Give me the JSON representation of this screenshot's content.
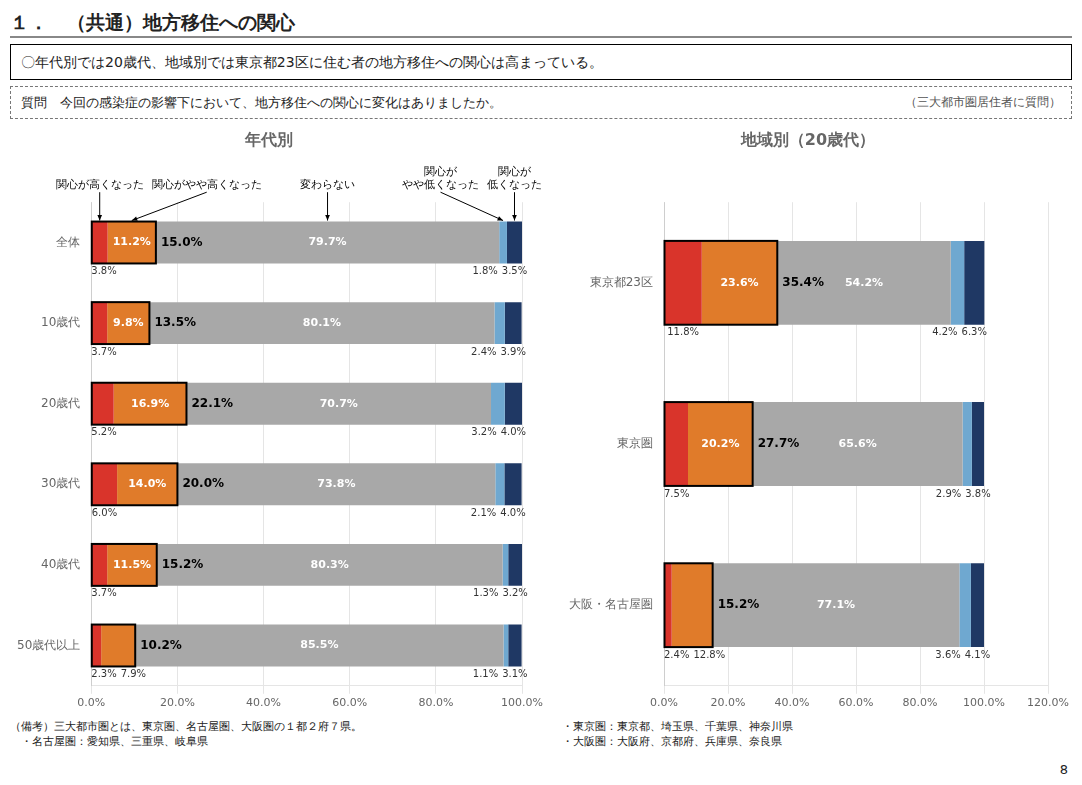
{
  "title": "１．　（共通）地方移住への関心",
  "summary": "〇年代別では20歳代、地域別では東京都23区に住む者の地方移住への関心は高まっている。",
  "question": "質問　今回の感染症の影響下において、地方移住への関心に変化はありましたか。",
  "question_note": "（三大都市圏居住者に質問）",
  "footnotes": [
    "（備考）三大都市圏とは、東京圏、名古屋圏、大阪圏の１都２府７県。",
    "　・名古屋圏：愛知県、三重県、岐阜県",
    "・東京圏：東京都、埼玉県、千葉県、神奈川県",
    "・大阪圏：大阪府、京都府、兵庫県、奈良県"
  ],
  "page_number": "8",
  "chart_data": [
    {
      "type": "bar",
      "orientation": "horizontal",
      "stacked": true,
      "title": "年代別",
      "categories": [
        "全体",
        "10歳代",
        "20歳代",
        "30歳代",
        "40歳代",
        "50歳代以上"
      ],
      "series": [
        {
          "name": "関心が高くなった",
          "color": "#d9342b",
          "values": [
            3.8,
            3.7,
            5.2,
            6.0,
            3.7,
            2.3
          ],
          "value_labels": [
            "3.8%",
            "3.7%",
            "5.2%",
            "6.0%",
            "3.7%",
            "2.3%"
          ]
        },
        {
          "name": "関心がやや高くなった",
          "color": "#e07b2a",
          "values": [
            11.2,
            9.8,
            16.9,
            14.0,
            11.5,
            7.9
          ],
          "value_labels": [
            "11.2%",
            "9.8%",
            "16.9%",
            "14.0%",
            "11.5%",
            "7.9%"
          ]
        },
        {
          "name": "変わらない",
          "color": "#a8a8a8",
          "values": [
            79.7,
            80.1,
            70.7,
            73.8,
            80.3,
            85.5
          ],
          "value_labels": [
            "79.7%",
            "80.1%",
            "70.7%",
            "73.8%",
            "80.3%",
            "85.5%"
          ]
        },
        {
          "name": "関心が\nやや低くなった",
          "color": "#6fa8d0",
          "values": [
            1.8,
            2.4,
            3.2,
            2.1,
            1.3,
            1.1
          ],
          "value_labels": [
            "1.8%",
            "2.4%",
            "3.2%",
            "2.1%",
            "1.3%",
            "1.1%"
          ]
        },
        {
          "name": "関心が\n低くなった",
          "color": "#1f3864",
          "values": [
            3.5,
            3.9,
            4.0,
            4.0,
            3.2,
            3.1
          ],
          "value_labels": [
            "3.5%",
            "3.9%",
            "4.0%",
            "4.0%",
            "3.2%",
            "3.1%"
          ]
        }
      ],
      "combined": [
        15.0,
        13.5,
        22.1,
        20.0,
        15.2,
        10.2
      ],
      "combined_labels": [
        "15.0%",
        "13.5%",
        "22.1%",
        "20.0%",
        "15.2%",
        "10.2%"
      ],
      "xlim": [
        0,
        100
      ],
      "xticks": [
        {
          "value": 0,
          "label": "0.0%"
        },
        {
          "value": 20,
          "label": "20.0%"
        },
        {
          "value": 40,
          "label": "40.0%"
        },
        {
          "value": 60,
          "label": "60.0%"
        },
        {
          "value": 80,
          "label": "80.0%"
        },
        {
          "value": 100,
          "label": "100.0%"
        }
      ],
      "grid": true,
      "data_labels": true
    },
    {
      "type": "bar",
      "orientation": "horizontal",
      "stacked": true,
      "title": "地域別（20歳代）",
      "categories": [
        "東京都23区",
        "東京圏",
        "大阪・名古屋圏"
      ],
      "series": [
        {
          "color": "#d9342b",
          "values": [
            11.8,
            7.5,
            2.4
          ],
          "value_labels": [
            "11.8%",
            "7.5%",
            "2.4%"
          ]
        },
        {
          "color": "#e07b2a",
          "values": [
            23.6,
            20.2,
            12.8
          ],
          "value_labels": [
            "23.6%",
            "20.2%",
            "12.8%"
          ]
        },
        {
          "color": "#a8a8a8",
          "values": [
            54.2,
            65.6,
            77.1
          ],
          "value_labels": [
            "54.2%",
            "65.6%",
            "77.1%"
          ]
        },
        {
          "color": "#6fa8d0",
          "values": [
            4.2,
            2.9,
            3.6
          ],
          "value_labels": [
            "4.2%",
            "2.9%",
            "3.6%"
          ]
        },
        {
          "color": "#1f3864",
          "values": [
            6.3,
            3.8,
            4.1
          ],
          "value_labels": [
            "6.3%",
            "3.8%",
            "4.1%"
          ]
        }
      ],
      "combined": [
        35.4,
        27.7,
        15.2
      ],
      "combined_labels": [
        "35.4%",
        "27.7%",
        "15.2%"
      ],
      "xlim": [
        0,
        120
      ],
      "xticks": [
        {
          "value": 0,
          "label": "0.0%"
        },
        {
          "value": 20,
          "label": "20.0%"
        },
        {
          "value": 40,
          "label": "40.0%"
        },
        {
          "value": 60,
          "label": "60.0%"
        },
        {
          "value": 80,
          "label": "80.0%"
        },
        {
          "value": 100,
          "label": "100.0%"
        },
        {
          "value": 120,
          "label": "120.0%"
        }
      ],
      "grid": true,
      "data_labels": true
    }
  ]
}
